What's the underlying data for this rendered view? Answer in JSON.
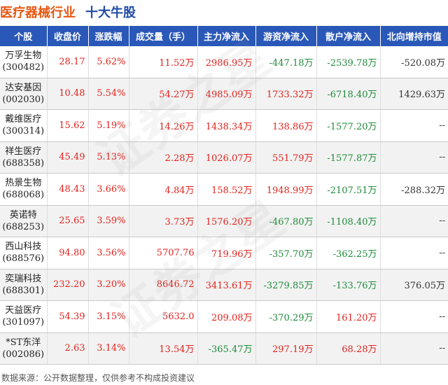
{
  "header": {
    "industry": "医疗器械行业",
    "subtitle": "十大牛股"
  },
  "columns": [
    "个股",
    "收盘价",
    "涨跌幅",
    "成交量（手）",
    "主力净流入",
    "游资净流入",
    "散户净流入",
    "北向增持市值"
  ],
  "rows": [
    {
      "name": "万孚生物",
      "code": "(300482)",
      "close": "28.17",
      "change": "5.62%",
      "volume": "11.52万",
      "main": "2986.95万",
      "hot": "-447.18万",
      "retail": "-2539.78万",
      "north": "-520.08万",
      "main_color": "red",
      "hot_color": "green",
      "retail_color": "green"
    },
    {
      "name": "达安基因",
      "code": "(002030)",
      "close": "10.48",
      "change": "5.54%",
      "volume": "54.27万",
      "main": "4985.09万",
      "hot": "1733.32万",
      "retail": "-6718.40万",
      "north": "1429.63万",
      "main_color": "red",
      "hot_color": "red",
      "retail_color": "green"
    },
    {
      "name": "戴维医疗",
      "code": "(300314)",
      "close": "15.62",
      "change": "5.19%",
      "volume": "14.26万",
      "main": "1438.34万",
      "hot": "138.86万",
      "retail": "-1577.20万",
      "north": "--",
      "main_color": "red",
      "hot_color": "red",
      "retail_color": "green"
    },
    {
      "name": "祥生医疗",
      "code": "(688358)",
      "close": "45.49",
      "change": "5.13%",
      "volume": "2.28万",
      "main": "1026.07万",
      "hot": "551.79万",
      "retail": "-1577.87万",
      "north": "--",
      "main_color": "red",
      "hot_color": "red",
      "retail_color": "green"
    },
    {
      "name": "热景生物",
      "code": "(688068)",
      "close": "48.43",
      "change": "3.66%",
      "volume": "4.84万",
      "main": "158.52万",
      "hot": "1948.99万",
      "retail": "-2107.51万",
      "north": "-288.32万",
      "main_color": "red",
      "hot_color": "red",
      "retail_color": "green"
    },
    {
      "name": "英诺特",
      "code": "(688253)",
      "close": "25.65",
      "change": "3.59%",
      "volume": "3.73万",
      "main": "1576.20万",
      "hot": "-467.80万",
      "retail": "-1108.40万",
      "north": "--",
      "main_color": "red",
      "hot_color": "green",
      "retail_color": "green"
    },
    {
      "name": "西山科技",
      "code": "(688576)",
      "close": "94.80",
      "change": "3.56%",
      "volume": "5707.76",
      "main": "719.96万",
      "hot": "-357.70万",
      "retail": "-362.25万",
      "north": "--",
      "main_color": "red",
      "hot_color": "green",
      "retail_color": "green"
    },
    {
      "name": "奕瑞科技",
      "code": "(688301)",
      "close": "232.20",
      "change": "3.20%",
      "volume": "8646.72",
      "main": "3413.61万",
      "hot": "-3279.85万",
      "retail": "-133.76万",
      "north": "376.05万",
      "main_color": "red",
      "hot_color": "green",
      "retail_color": "green"
    },
    {
      "name": "天益医疗",
      "code": "(301097)",
      "close": "54.39",
      "change": "3.15%",
      "volume": "5632.0",
      "main": "209.08万",
      "hot": "-370.29万",
      "retail": "161.20万",
      "north": "--",
      "main_color": "red",
      "hot_color": "green",
      "retail_color": "red"
    },
    {
      "name": "*ST东洋",
      "code": "(002086)",
      "close": "2.63",
      "change": "3.14%",
      "volume": "13.54万",
      "main": "-365.47万",
      "hot": "297.19万",
      "retail": "68.28万",
      "north": "--",
      "main_color": "green",
      "hot_color": "red",
      "retail_color": "red"
    }
  ],
  "footer": "数据来源：公开数据整理，仅供参考不构成投资建议",
  "watermark": "证券之星",
  "colors": {
    "up": "#e0231d",
    "down": "#1e8a3a",
    "header_bg": "#2a58b8",
    "title_orange": "#e8560f",
    "title_blue": "#1f4aa8"
  }
}
